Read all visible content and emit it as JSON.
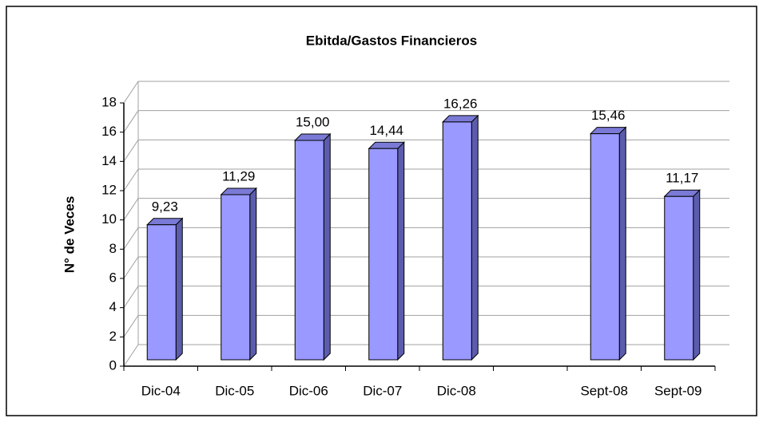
{
  "chart_data": {
    "type": "bar3d",
    "title": "Ebitda/Gastos Financieros",
    "y_label": "N° de Veces",
    "categories": [
      "Dic-04",
      "Dic-05",
      "Dic-06",
      "Dic-07",
      "Dic-08",
      null,
      "Sept-08",
      "Sept-09"
    ],
    "values": [
      9.23,
      11.29,
      15.0,
      14.44,
      16.26,
      null,
      15.46,
      11.17
    ],
    "value_labels": [
      "9,23",
      "11,29",
      "15,00",
      "14,44",
      "16,26",
      null,
      "15,46",
      "11,17"
    ],
    "color": "#9999ff",
    "ylim": [
      0,
      18
    ],
    "yticks": [
      0,
      2,
      4,
      6,
      8,
      10,
      12,
      14,
      16,
      18
    ],
    "grid": true
  }
}
